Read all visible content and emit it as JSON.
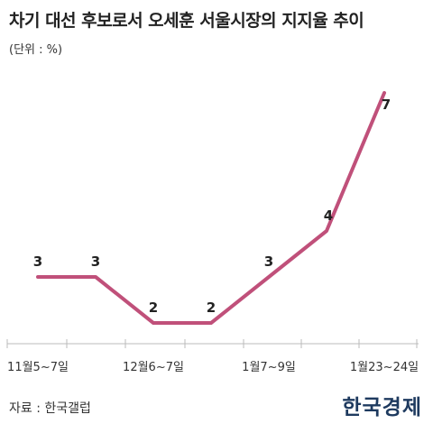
{
  "header": {
    "title": "차기 대선 후보로서 오세훈 서울시장의 지지율 추이",
    "unit": "(단위 : %)"
  },
  "footer": {
    "source": "자료 : 한국갤럽",
    "logo": "한국경제"
  },
  "colors": {
    "line": "#c0507a",
    "axis": "#bbbbbb",
    "label": "#222222"
  },
  "chart_data": {
    "type": "line",
    "title": "차기 대선 후보로서 오세훈 서울시장의 지지율 추이",
    "ylabel": "(단위 : %)",
    "ylim": [
      0,
      8
    ],
    "grid": false,
    "legend": "none",
    "x": [
      "11월5~7일",
      "",
      "12월6~7일",
      "",
      "1월7~9일",
      "",
      "1월23~24일"
    ],
    "tick_labels": [
      "11월5~7일",
      "12월6~7일",
      "1월7~9일",
      "1월23~24일"
    ],
    "series": [
      {
        "values": [
          3,
          3,
          2,
          2,
          3,
          4,
          7
        ],
        "labels": [
          "3",
          "3",
          "2",
          "2",
          "3",
          "4",
          "7"
        ]
      }
    ]
  }
}
